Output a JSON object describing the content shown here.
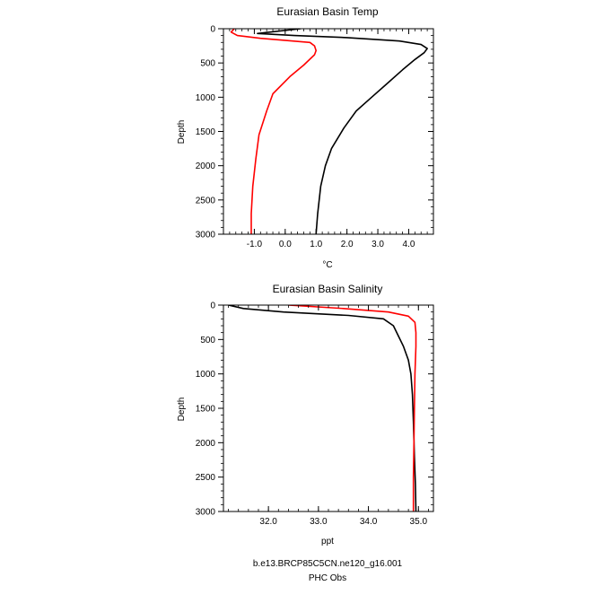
{
  "colors": {
    "model": "#000000",
    "obs": "#ff0000",
    "axis": "#000000"
  },
  "legend": {
    "model_label": "b.e13.BRCP85C5CN.ne120_g16.001",
    "obs_label": "PHC Obs"
  },
  "chart_data": [
    {
      "type": "line",
      "title": "Eurasian Basin Temp",
      "xlabel": "°C",
      "ylabel": "Depth",
      "xlim": [
        -2.0,
        4.8
      ],
      "ylim": [
        3000,
        0
      ],
      "xticks": [
        -1.0,
        0.0,
        1.0,
        2.0,
        3.0,
        4.0
      ],
      "xtick_labels": [
        "-1.0",
        "0.0",
        "1.0",
        "2.0",
        "3.0",
        "4.0"
      ],
      "yticks": [
        0,
        500,
        1000,
        1500,
        2000,
        2500,
        3000
      ],
      "ytick_labels": [
        "0",
        "500",
        "1000",
        "1500",
        "2000",
        "2500",
        "3000"
      ],
      "grid": false,
      "series": [
        {
          "name": "b.e13.BRCP85C5CN.ne120_g16.001",
          "color": "#000000",
          "points": [
            [
              0.5,
              0
            ],
            [
              -0.9,
              70
            ],
            [
              0.3,
              100
            ],
            [
              2.0,
              130
            ],
            [
              3.7,
              180
            ],
            [
              4.4,
              230
            ],
            [
              4.6,
              290
            ],
            [
              4.5,
              350
            ],
            [
              4.2,
              450
            ],
            [
              3.8,
              600
            ],
            [
              3.3,
              800
            ],
            [
              2.8,
              1000
            ],
            [
              2.3,
              1200
            ],
            [
              1.9,
              1450
            ],
            [
              1.5,
              1750
            ],
            [
              1.3,
              2000
            ],
            [
              1.15,
              2300
            ],
            [
              1.05,
              2700
            ],
            [
              1.0,
              3000
            ]
          ]
        },
        {
          "name": "PHC Obs",
          "color": "#ff0000",
          "points": [
            [
              -1.65,
              0
            ],
            [
              -1.75,
              50
            ],
            [
              -1.55,
              100
            ],
            [
              -0.8,
              140
            ],
            [
              0.8,
              200
            ],
            [
              0.95,
              250
            ],
            [
              1.0,
              320
            ],
            [
              0.95,
              380
            ],
            [
              0.6,
              530
            ],
            [
              0.15,
              700
            ],
            [
              -0.4,
              950
            ],
            [
              -0.6,
              1200
            ],
            [
              -0.85,
              1550
            ],
            [
              -0.95,
              1900
            ],
            [
              -1.05,
              2300
            ],
            [
              -1.1,
              2700
            ],
            [
              -1.1,
              3000
            ]
          ]
        }
      ]
    },
    {
      "type": "line",
      "title": "Eurasian Basin Salinity",
      "xlabel": "ppt",
      "ylabel": "Depth",
      "xlim": [
        31.1,
        35.3
      ],
      "ylim": [
        3000,
        0
      ],
      "xticks": [
        32.0,
        33.0,
        34.0,
        35.0
      ],
      "xtick_labels": [
        "32.0",
        "33.0",
        "34.0",
        "35.0"
      ],
      "yticks": [
        0,
        500,
        1000,
        1500,
        2000,
        2500,
        3000
      ],
      "ytick_labels": [
        "0",
        "500",
        "1000",
        "1500",
        "2000",
        "2500",
        "3000"
      ],
      "grid": false,
      "series": [
        {
          "name": "b.e13.BRCP85C5CN.ne120_g16.001",
          "color": "#000000",
          "points": [
            [
              31.2,
              0
            ],
            [
              31.5,
              50
            ],
            [
              32.3,
              100
            ],
            [
              33.6,
              150
            ],
            [
              34.3,
              200
            ],
            [
              34.5,
              300
            ],
            [
              34.6,
              450
            ],
            [
              34.7,
              600
            ],
            [
              34.8,
              800
            ],
            [
              34.85,
              1000
            ],
            [
              34.88,
              1300
            ],
            [
              34.9,
              1700
            ],
            [
              34.92,
              2200
            ],
            [
              34.94,
              2600
            ],
            [
              34.95,
              3000
            ]
          ]
        },
        {
          "name": "PHC Obs",
          "color": "#ff0000",
          "points": [
            [
              32.4,
              0
            ],
            [
              33.5,
              50
            ],
            [
              34.4,
              100
            ],
            [
              34.8,
              160
            ],
            [
              34.93,
              250
            ],
            [
              34.95,
              400
            ],
            [
              34.95,
              600
            ],
            [
              34.93,
              1000
            ],
            [
              34.92,
              1500
            ],
            [
              34.91,
              2000
            ],
            [
              34.9,
              2500
            ],
            [
              34.9,
              3000
            ]
          ]
        }
      ]
    }
  ]
}
